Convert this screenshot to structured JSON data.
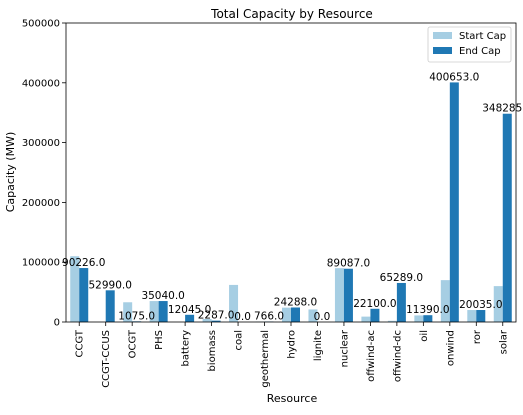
{
  "chart_data": {
    "type": "bar",
    "title": "Total Capacity by Resource",
    "xlabel": "Resource",
    "ylabel": "Capacity (MW)",
    "ylim": [
      0,
      500000
    ],
    "yticks": [
      "0",
      "100000",
      "200000",
      "300000",
      "400000",
      "500000"
    ],
    "categories": [
      "CCGT",
      "CCGT-CCUS",
      "OCGT",
      "PHS",
      "battery",
      "biomass",
      "coal",
      "geothermal",
      "hydro",
      "lignite",
      "nuclear",
      "offwind-ac",
      "offwind-dc",
      "oil",
      "onwind",
      "ror",
      "solar"
    ],
    "series": [
      {
        "name": "Start Cap",
        "color": "#a6cee3",
        "values": [
          110000,
          0,
          33000,
          35000,
          0,
          5000,
          62000,
          700,
          24000,
          21000,
          90000,
          9000,
          2000,
          11000,
          70000,
          20000,
          60000
        ]
      },
      {
        "name": "End Cap",
        "color": "#1f78b4",
        "values": [
          90226.0,
          52990.0,
          1075.0,
          35040.0,
          12045.0,
          2287.0,
          0.0,
          766.0,
          24288.0,
          0.0,
          89087.0,
          22100.0,
          65289.0,
          11390.0,
          400653.0,
          20035.0,
          348285.0
        ]
      }
    ],
    "data_labels": [
      "90226.0",
      "52990.0",
      "1075.0",
      "35040.0",
      "12045.0",
      "2287.0",
      "0.0",
      "766.0",
      "24288.0",
      "0.0",
      "89087.0",
      "22100.0",
      "65289.0",
      "11390.0",
      "400653.0",
      "20035.0",
      "348285.0"
    ],
    "legend": {
      "position": "top-right"
    },
    "grid": false
  }
}
